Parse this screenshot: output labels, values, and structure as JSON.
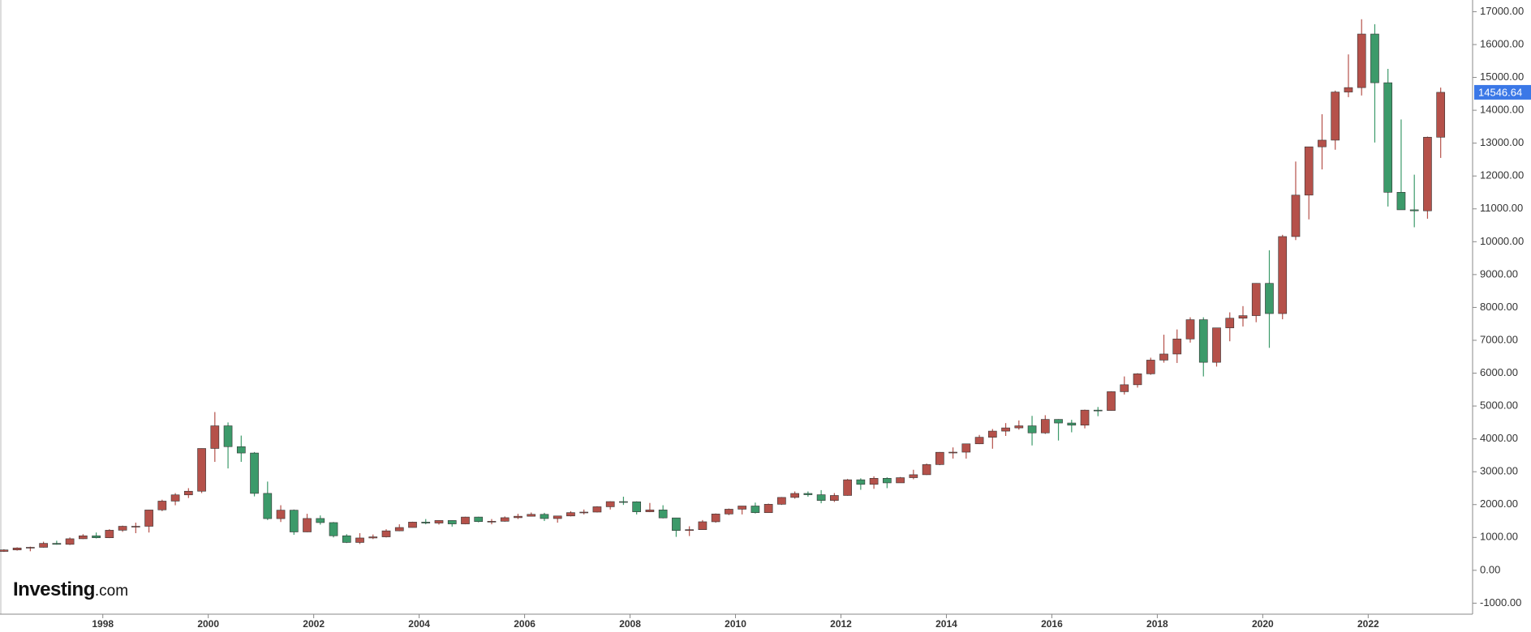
{
  "chart_data": {
    "type": "candlestick",
    "logo": {
      "brand": "Investing",
      "suffix": ".com"
    },
    "up_color": "#b5514a",
    "down_color": "#3c9a6a",
    "xlim": [
      1996.05,
      2023.98
    ],
    "xticks": [
      1998,
      2000,
      2002,
      2004,
      2006,
      2008,
      2010,
      2012,
      2014,
      2016,
      2018,
      2020,
      2022
    ],
    "ylim": [
      -1335,
      17356
    ],
    "yticks": [
      {
        "value": -1000,
        "label": "-1000.00"
      },
      {
        "value": 0,
        "label": "0.00"
      },
      {
        "value": 1000,
        "label": "1000.00"
      },
      {
        "value": 2000,
        "label": "2000.00"
      },
      {
        "value": 3000,
        "label": "3000.00"
      },
      {
        "value": 4000,
        "label": "4000.00"
      },
      {
        "value": 5000,
        "label": "5000.00"
      },
      {
        "value": 6000,
        "label": "6000.00"
      },
      {
        "value": 7000,
        "label": "7000.00"
      },
      {
        "value": 8000,
        "label": "8000.00"
      },
      {
        "value": 9000,
        "label": "9000.00"
      },
      {
        "value": 10000,
        "label": "10000.00"
      },
      {
        "value": 11000,
        "label": "11000.00"
      },
      {
        "value": 12000,
        "label": "12000.00"
      },
      {
        "value": 13000,
        "label": "13000.00"
      },
      {
        "value": 14000,
        "label": "14000.00"
      },
      {
        "value": 15000,
        "label": "15000.00"
      },
      {
        "value": 16000,
        "label": "16000.00"
      },
      {
        "value": 17000,
        "label": "17000.00"
      }
    ],
    "last_price": 14546.64,
    "last_price_color": "#3b78e7",
    "x": [
      1996.125,
      1996.375,
      1996.625,
      1996.875,
      1997.125,
      1997.375,
      1997.625,
      1997.875,
      1998.125,
      1998.375,
      1998.625,
      1998.875,
      1999.125,
      1999.375,
      1999.625,
      1999.875,
      2000.125,
      2000.375,
      2000.625,
      2000.875,
      2001.125,
      2001.375,
      2001.625,
      2001.875,
      2002.125,
      2002.375,
      2002.625,
      2002.875,
      2003.125,
      2003.375,
      2003.625,
      2003.875,
      2004.125,
      2004.375,
      2004.625,
      2004.875,
      2005.125,
      2005.375,
      2005.625,
      2005.875,
      2006.125,
      2006.375,
      2006.625,
      2006.875,
      2007.125,
      2007.375,
      2007.625,
      2007.875,
      2008.125,
      2008.375,
      2008.625,
      2008.875,
      2009.125,
      2009.375,
      2009.625,
      2009.875,
      2010.125,
      2010.375,
      2010.625,
      2010.875,
      2011.125,
      2011.375,
      2011.625,
      2011.875,
      2012.125,
      2012.375,
      2012.625,
      2012.875,
      2013.125,
      2013.375,
      2013.625,
      2013.875,
      2014.125,
      2014.375,
      2014.625,
      2014.875,
      2015.125,
      2015.375,
      2015.625,
      2015.875,
      2016.125,
      2016.375,
      2016.625,
      2016.875,
      2017.125,
      2017.375,
      2017.625,
      2017.875,
      2018.125,
      2018.375,
      2018.625,
      2018.875,
      2019.125,
      2019.375,
      2019.625,
      2019.875,
      2020.125,
      2020.375,
      2020.625,
      2020.875,
      2021.125,
      2021.375,
      2021.625,
      2021.875,
      2022.125,
      2022.375,
      2022.625,
      2022.875,
      2023.125,
      2023.375
    ],
    "open": [
      575,
      620,
      680,
      700,
      820,
      790,
      960,
      1050,
      990,
      1220,
      1340,
      1340,
      1840,
      2106,
      2296,
      2407,
      3708,
      4397,
      3763,
      3570,
      2341,
      1573,
      1830,
      1168,
      1577,
      1452,
      1051,
      848,
      984,
      1018,
      1201,
      1303,
      1467,
      1438,
      1516,
      1412,
      1621,
      1483,
      1493,
      1601,
      1645,
      1703,
      1575,
      1654,
      1756,
      1772,
      1934,
      2091,
      2085,
      1781,
      1837,
      1595,
      1212,
      1237,
      1477,
      1714,
      1860,
      1957,
      1754,
      2010,
      2218,
      2339,
      2300,
      2126,
      2278,
      2755,
      2616,
      2800,
      2661,
      2819,
      2909,
      3218,
      3592,
      3596,
      3849,
      4049,
      4236,
      4334,
      4397,
      4182,
      4593,
      4483,
      4417,
      4875,
      4864,
      5436,
      5647,
      5980,
      6397,
      6582,
      7040,
      7627,
      6330,
      7378,
      7672,
      7750,
      8733,
      7813,
      10157,
      11418,
      12888,
      13091,
      14555,
      14690,
      16320,
      14838,
      11504,
      10971,
      10940,
      13180
    ],
    "high": [
      640,
      700,
      720,
      870,
      900,
      1000,
      1100,
      1150,
      1250,
      1360,
      1450,
      1840,
      2150,
      2350,
      2500,
      3710,
      4816,
      4500,
      4100,
      3600,
      2700,
      1980,
      1850,
      1720,
      1670,
      1470,
      1100,
      1130,
      1090,
      1250,
      1400,
      1480,
      1560,
      1520,
      1520,
      1630,
      1630,
      1560,
      1640,
      1720,
      1760,
      1750,
      1660,
      1800,
      1850,
      1950,
      2100,
      2240,
      2100,
      2050,
      1980,
      1600,
      1340,
      1530,
      1730,
      1880,
      1960,
      2060,
      2030,
      2230,
      2400,
      2400,
      2440,
      2350,
      2780,
      2800,
      2860,
      2830,
      2840,
      3060,
      3250,
      3600,
      3740,
      3850,
      4120,
      4300,
      4480,
      4560,
      4700,
      4720,
      4600,
      4580,
      4890,
      4970,
      5450,
      5900,
      6000,
      6470,
      7170,
      7330,
      7700,
      7700,
      7370,
      7850,
      8040,
      8740,
      9740,
      10210,
      12440,
      12880,
      13880,
      14600,
      15700,
      16770,
      16620,
      15260,
      13720,
      12040,
      13200,
      14690
    ],
    "low": [
      560,
      600,
      580,
      690,
      780,
      770,
      950,
      970,
      980,
      1170,
      1130,
      1150,
      1800,
      1980,
      2200,
      2350,
      3300,
      3100,
      3300,
      2250,
      1530,
      1470,
      1080,
      1160,
      1390,
      1000,
      830,
      800,
      950,
      1000,
      1190,
      1300,
      1400,
      1390,
      1330,
      1400,
      1460,
      1400,
      1480,
      1560,
      1640,
      1500,
      1450,
      1640,
      1700,
      1760,
      1850,
      1990,
      1700,
      1770,
      1580,
      1018,
      1043,
      1230,
      1450,
      1680,
      1700,
      1730,
      1750,
      1990,
      2180,
      2240,
      2040,
      2080,
      2270,
      2450,
      2480,
      2500,
      2660,
      2770,
      2900,
      3200,
      3400,
      3400,
      3840,
      3700,
      4090,
      4280,
      3800,
      4150,
      3950,
      4200,
      4320,
      4690,
      4860,
      5350,
      5560,
      5950,
      6320,
      6310,
      6930,
      5900,
      6200,
      6970,
      7420,
      7550,
      6770,
      7640,
      10050,
      10680,
      12200,
      12800,
      14400,
      14450,
      13020,
      11070,
      10980,
      10440,
      10700,
      12550
    ],
    "close": [
      620,
      680,
      700,
      820,
      790,
      960,
      1050,
      990,
      1220,
      1340,
      1340,
      1836,
      2106,
      2296,
      2407,
      3708,
      4397,
      3763,
      3570,
      2341,
      1573,
      1830,
      1168,
      1577,
      1452,
      1051,
      848,
      984,
      1018,
      1201,
      1303,
      1467,
      1438,
      1516,
      1412,
      1621,
      1483,
      1493,
      1601,
      1645,
      1703,
      1575,
      1654,
      1756,
      1772,
      1934,
      2091,
      2085,
      1781,
      1837,
      1595,
      1212,
      1237,
      1477,
      1714,
      1860,
      1957,
      1754,
      2010,
      2218,
      2339,
      2300,
      2126,
      2278,
      2755,
      2616,
      2800,
      2661,
      2819,
      2909,
      3218,
      3592,
      3596,
      3849,
      4049,
      4236,
      4334,
      4397,
      4182,
      4593,
      4483,
      4417,
      4875,
      4864,
      5436,
      5647,
      5980,
      6397,
      6582,
      7040,
      7627,
      6330,
      7378,
      7672,
      7750,
      8733,
      7813,
      10157,
      11418,
      12888,
      13091,
      14555,
      14690,
      16320,
      14838,
      11504,
      10971,
      10940,
      13180,
      14546.64
    ]
  }
}
